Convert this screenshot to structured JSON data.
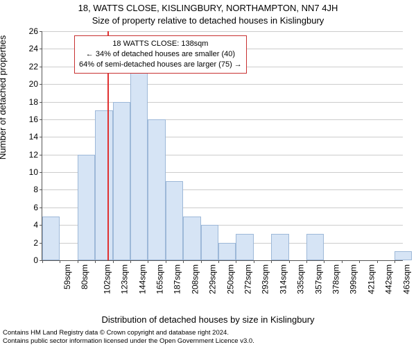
{
  "title_line1": "18, WATTS CLOSE, KISLINGBURY, NORTHAMPTON, NN7 4JH",
  "title_line2": "Size of property relative to detached houses in Kislingbury",
  "y_axis_label": "Number of detached properties",
  "x_axis_label": "Distribution of detached houses by size in Kislingbury",
  "footer_line1": "Contains HM Land Registry data © Crown copyright and database right 2024.",
  "footer_line2": "Contains public sector information licensed under the Open Government Licence v3.0.",
  "annotation": {
    "line1": "18 WATTS CLOSE: 138sqm",
    "line2": "← 34% of detached houses are smaller (40)",
    "line3": "64% of semi-detached houses are larger (75) →"
  },
  "chart": {
    "type": "histogram",
    "ylim": [
      0,
      26
    ],
    "ytick_step": 2,
    "x_min": 59,
    "x_max": 495,
    "x_bin_width": 21.3,
    "bar_color": "#d6e4f5",
    "bar_border": "#9db8d8",
    "grid_color": "#cccccc",
    "axis_color": "#555555",
    "marker_x": 138,
    "marker_color": "#e03030",
    "annotation_border": "#c83030",
    "xtick_labels": [
      "59sqm",
      "80sqm",
      "102sqm",
      "123sqm",
      "144sqm",
      "165sqm",
      "187sqm",
      "208sqm",
      "229sqm",
      "250sqm",
      "272sqm",
      "293sqm",
      "314sqm",
      "335sqm",
      "357sqm",
      "378sqm",
      "399sqm",
      "421sqm",
      "442sqm",
      "463sqm",
      "484sqm"
    ],
    "bars": [
      5,
      0,
      12,
      17,
      18,
      22,
      16,
      9,
      5,
      4,
      2,
      3,
      0,
      3,
      0,
      3,
      0,
      0,
      0,
      0,
      1
    ],
    "title_fontsize": 13,
    "label_fontsize": 13,
    "tick_fontsize": 12,
    "footer_fontsize": 9.5
  }
}
